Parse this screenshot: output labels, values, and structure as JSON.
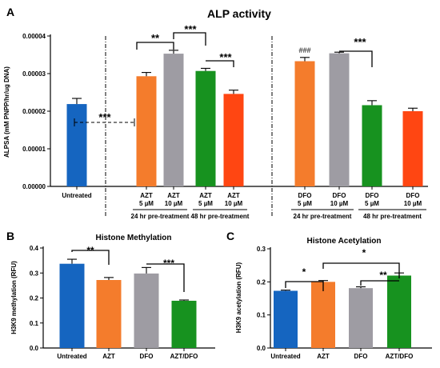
{
  "chart_data": [
    {
      "panel_label": "A",
      "type": "bar",
      "title": "ALP activity",
      "ylabel": "ALPSA (mM PNPP/hr/ug DNA)",
      "ylim": [
        0,
        4e-05
      ],
      "yticks": [
        "0.00000",
        "0.00001",
        "0.00002",
        "0.00003",
        "0.00004"
      ],
      "categories": [
        {
          "line1": "Untreated",
          "line2": "",
          "value": 2.19e-05,
          "error": 1.5e-06,
          "color": "#1565c0"
        },
        {
          "line1": "AZT",
          "line2": "5 µM",
          "value": 2.93e-05,
          "error": 1e-06,
          "color": "#f47c2c"
        },
        {
          "line1": "AZT",
          "line2": "10 µM",
          "value": 3.53e-05,
          "error": 9e-07,
          "color": "#9e9ca3"
        },
        {
          "line1": "AZT",
          "line2": "5 µM",
          "value": 3.07e-05,
          "error": 7e-07,
          "color": "#17921f"
        },
        {
          "line1": "AZT",
          "line2": "10 µM",
          "value": 2.46e-05,
          "error": 1e-06,
          "color": "#ff4612"
        },
        {
          "line1": "DFO",
          "line2": "5 µM",
          "value": 3.33e-05,
          "error": 1e-06,
          "color": "#f47c2c"
        },
        {
          "line1": "DFO",
          "line2": "10 µM",
          "value": 3.54e-05,
          "error": 3e-07,
          "color": "#9e9ca3"
        },
        {
          "line1": "DFO",
          "line2": "5 µM",
          "value": 2.16e-05,
          "error": 1.2e-06,
          "color": "#17921f"
        },
        {
          "line1": "DFO",
          "line2": "10 µM",
          "value": 2e-05,
          "error": 8e-07,
          "color": "#ff4612"
        }
      ],
      "groups": [
        "24 hr pre-treatment",
        "48 hr pre-treatment",
        "24 hr pre-treatment",
        "48 hr pre-treatment"
      ],
      "annotations": [
        "***",
        "**",
        "***",
        "***",
        "###",
        "***"
      ]
    },
    {
      "panel_label": "B",
      "type": "bar",
      "title": "Histone Methylation",
      "ylabel": "H3K9 methylation (RFU)",
      "ylim": [
        0,
        0.4
      ],
      "yticks": [
        "0.0",
        "0.1",
        "0.2",
        "0.3",
        "0.4"
      ],
      "categories": [
        {
          "label": "Untreated",
          "value": 0.337,
          "error": 0.018,
          "color": "#1565c0"
        },
        {
          "label": "AZT",
          "value": 0.272,
          "error": 0.01,
          "color": "#f47c2c"
        },
        {
          "label": "DFO",
          "value": 0.298,
          "error": 0.024,
          "color": "#9e9ca3"
        },
        {
          "label": "AZT/DFO",
          "value": 0.189,
          "error": 0.003,
          "color": "#17921f"
        }
      ],
      "annotations": [
        "**",
        "***"
      ]
    },
    {
      "panel_label": "C",
      "type": "bar",
      "title": "Histone Acetylation",
      "ylabel": "H3K9 acetylation (RFU)",
      "ylim": [
        0,
        0.3
      ],
      "yticks": [
        "0.0",
        "0.1",
        "0.2",
        "0.3"
      ],
      "categories": [
        {
          "label": "Untreated",
          "value": 0.173,
          "error": 0.002,
          "color": "#1565c0"
        },
        {
          "label": "AZT",
          "value": 0.2,
          "error": 0.004,
          "color": "#f47c2c"
        },
        {
          "label": "DFO",
          "value": 0.181,
          "error": 0.004,
          "color": "#9e9ca3"
        },
        {
          "label": "AZT/DFO",
          "value": 0.219,
          "error": 0.008,
          "color": "#17921f"
        }
      ],
      "annotations": [
        "*",
        "*",
        "**"
      ]
    }
  ]
}
